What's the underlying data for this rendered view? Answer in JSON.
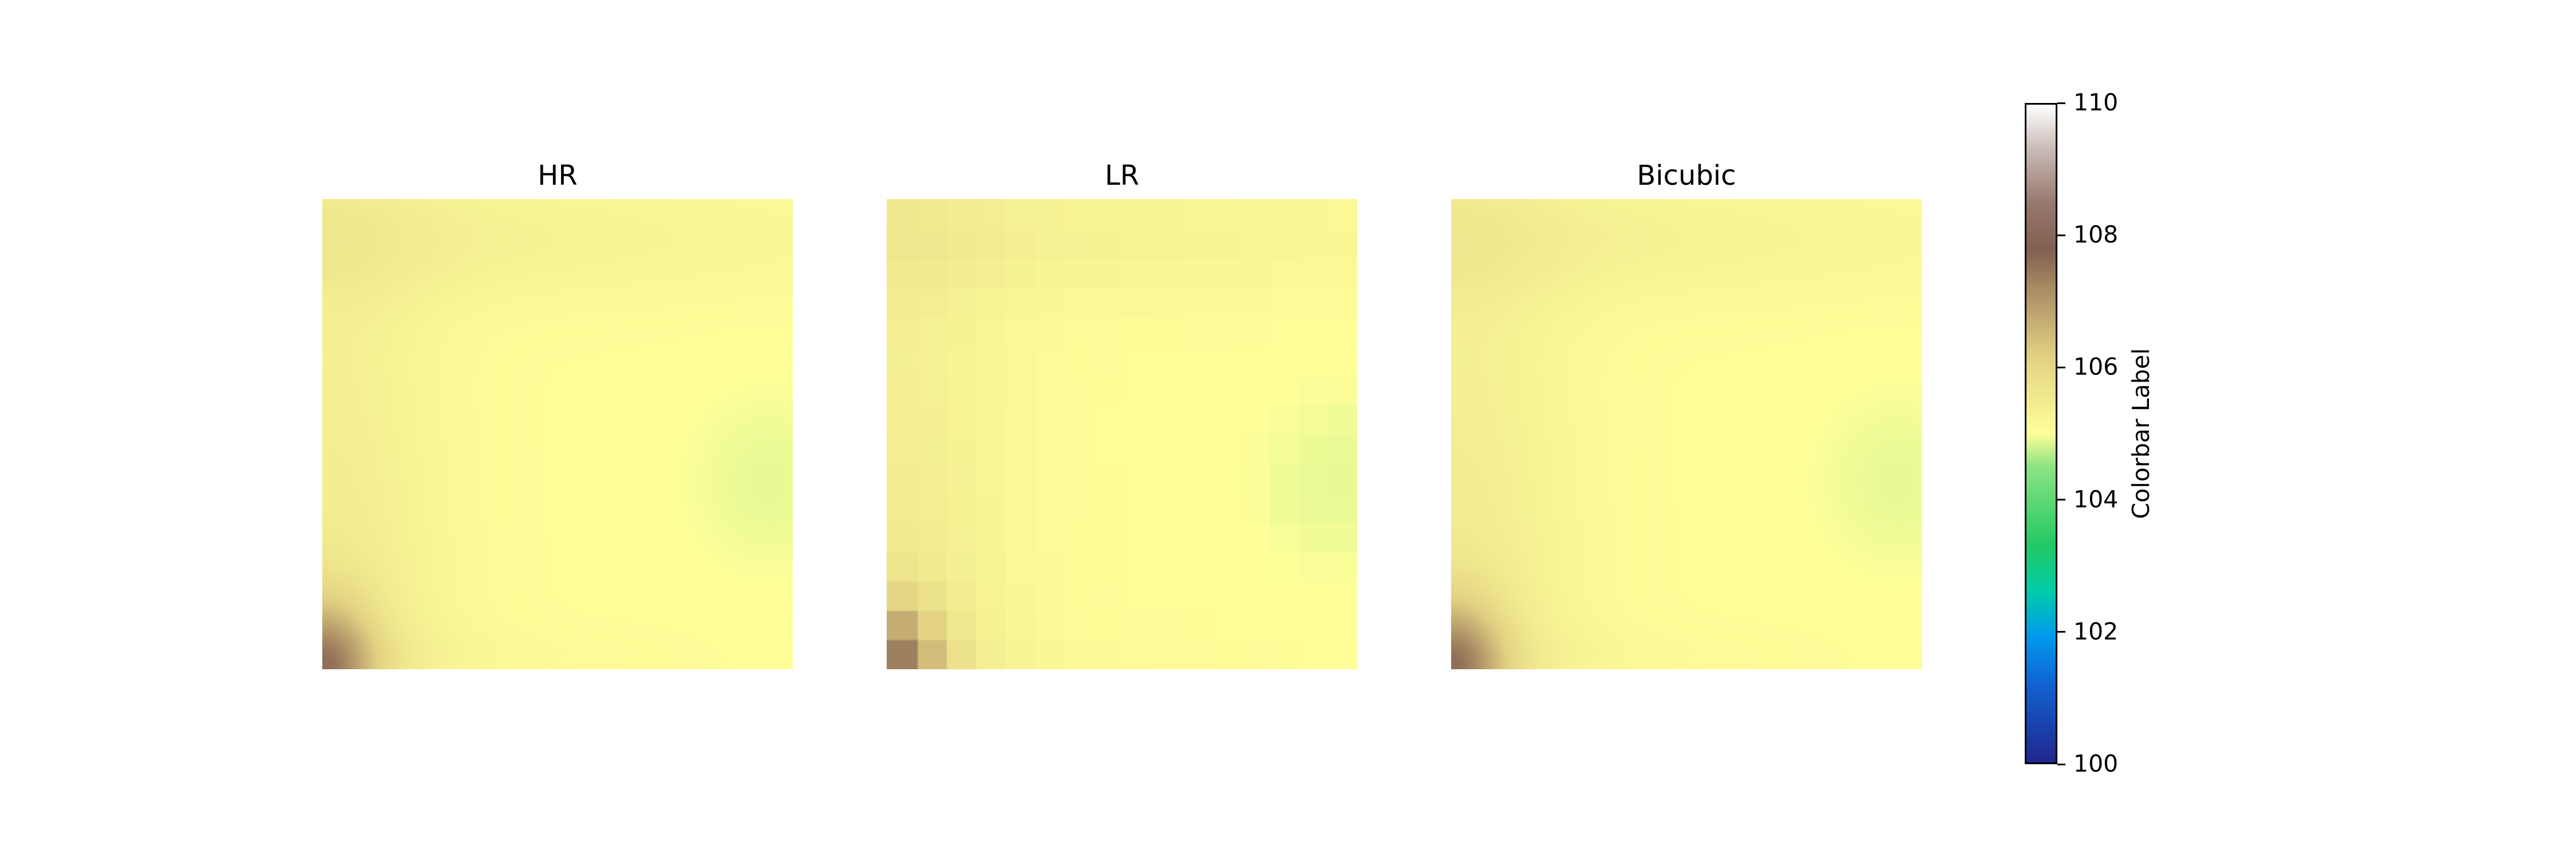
{
  "chart_data": {
    "type": "heatmap",
    "panels": [
      {
        "title": "HR",
        "resolution": "high"
      },
      {
        "title": "LR",
        "resolution": "low",
        "grid": [
          16,
          16
        ]
      },
      {
        "title": "Bicubic",
        "resolution": "interpolated"
      }
    ],
    "colormap": "terrain",
    "colorbar": {
      "label": "Colorbar Label",
      "vmin": 100,
      "vmax": 110,
      "ticks": [
        "100",
        "102",
        "104",
        "106",
        "108",
        "110"
      ]
    },
    "value_range_shown": [
      105.0,
      107.3
    ],
    "axes_visible": false
  }
}
